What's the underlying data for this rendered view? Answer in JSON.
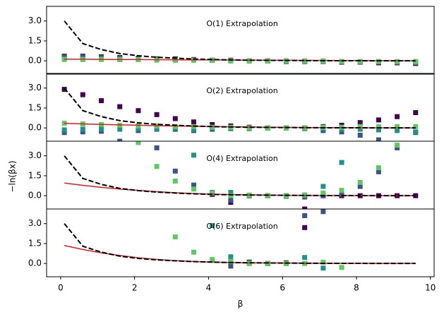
{
  "chart_data": [
    {
      "type": "scatter",
      "title": "O(1) Extrapolation",
      "x": [
        0.1,
        0.6,
        1.1,
        1.6,
        2.1,
        2.6,
        3.1,
        3.6,
        4.1,
        4.6,
        5.1,
        5.6,
        6.1,
        6.6,
        7.1,
        7.6,
        8.1,
        8.6,
        9.1,
        9.6
      ],
      "xlim": [
        -0.38,
        10.1
      ],
      "ylim": [
        -1,
        4.1
      ],
      "yticks": [
        {
          "value": 0,
          "label": "0.0"
        },
        {
          "value": 1.5,
          "label": "1.5"
        },
        {
          "value": 3,
          "label": "3.0"
        }
      ],
      "series": [
        {
          "kind": "marker",
          "color": "#440154",
          "values": [
            0.35,
            0.35,
            0.3,
            0.25,
            0.2,
            0.15,
            0.15,
            0.1,
            0.05,
            0.05,
            0.0,
            0.0,
            -0.05,
            -0.05,
            -0.05,
            -0.1,
            -0.1,
            -0.15,
            -0.15,
            -0.2
          ]
        },
        {
          "kind": "marker",
          "color": "#3b528b",
          "values": [
            0.3,
            0.3,
            0.25,
            0.2,
            0.15,
            0.15,
            0.1,
            0.05,
            0.05,
            0.0,
            0.0,
            0.0,
            -0.05,
            -0.05,
            -0.05,
            -0.05,
            -0.1,
            -0.1,
            -0.1,
            -0.15
          ]
        },
        {
          "kind": "marker",
          "color": "#21918c",
          "values": [
            0.15,
            0.15,
            0.15,
            0.1,
            0.1,
            0.1,
            0.05,
            0.05,
            0.05,
            0.0,
            0.0,
            0.0,
            0.0,
            -0.05,
            -0.05,
            -0.05,
            -0.05,
            -0.05,
            -0.1,
            -0.1
          ]
        },
        {
          "kind": "marker",
          "color": "#5ec962",
          "values": [
            0.1,
            0.1,
            0.1,
            0.1,
            0.1,
            0.05,
            0.05,
            0.05,
            0.05,
            0.0,
            0.0,
            0.0,
            0.0,
            0.0,
            0.0,
            -0.05,
            -0.05,
            -0.05,
            -0.05,
            -0.05
          ]
        },
        {
          "kind": "line",
          "color": "#e41a1c",
          "values": [
            0.12,
            0.12,
            0.11,
            0.1,
            0.1,
            0.09,
            0.08,
            0.07,
            0.07,
            0.06,
            0.05,
            0.05,
            0.04,
            0.03,
            0.03,
            0.02,
            0.02,
            0.01,
            0.01,
            0.0
          ]
        },
        {
          "kind": "line",
          "dashed": true,
          "color": "#000000",
          "values": [
            3.0,
            1.3,
            0.85,
            0.55,
            0.38,
            0.27,
            0.2,
            0.14,
            0.1,
            0.07,
            0.05,
            0.04,
            0.03,
            0.02,
            0.01,
            0.01,
            0.01,
            0.0,
            0.0,
            0.0
          ]
        }
      ]
    },
    {
      "type": "scatter",
      "title": "O(2) Extrapolation",
      "x": [
        0.1,
        0.6,
        1.1,
        1.6,
        2.1,
        2.6,
        3.1,
        3.6,
        4.1,
        4.6,
        5.1,
        5.6,
        6.1,
        6.6,
        7.1,
        7.6,
        8.1,
        8.6,
        9.1,
        9.6
      ],
      "xlim": [
        -0.38,
        10.1
      ],
      "ylim": [
        -1,
        4.1
      ],
      "yticks": [
        {
          "value": 0,
          "label": "0.0"
        },
        {
          "value": 1.5,
          "label": "1.5"
        },
        {
          "value": 3,
          "label": "3.0"
        }
      ],
      "series": [
        {
          "kind": "marker",
          "color": "#440154",
          "values": [
            2.9,
            2.5,
            2.05,
            1.6,
            1.3,
            1.0,
            0.7,
            0.45,
            0.25,
            0.15,
            0.05,
            0.0,
            0.0,
            0.0,
            0.1,
            0.2,
            0.4,
            0.6,
            0.85,
            1.15
          ]
        },
        {
          "kind": "marker",
          "color": "#3b528b",
          "values": [
            -0.35,
            -0.3,
            -0.25,
            -1.0,
            -0.2,
            -0.1,
            -0.1,
            -0.2,
            -0.1,
            -0.05,
            -0.05,
            0.0,
            0.0,
            -0.05,
            -0.2,
            -0.3,
            -0.55,
            -0.9,
            -1.3,
            -0.35
          ]
        },
        {
          "kind": "marker",
          "color": "#21918c",
          "values": [
            -0.15,
            -0.1,
            -0.1,
            -0.1,
            -0.05,
            -0.05,
            0.0,
            -0.1,
            0.0,
            0.0,
            0.0,
            0.0,
            0.0,
            0.0,
            -0.05,
            -0.1,
            -0.1,
            -0.15,
            -0.2,
            -0.3
          ]
        },
        {
          "kind": "marker",
          "color": "#5ec962",
          "values": [
            0.35,
            0.3,
            0.25,
            0.2,
            0.15,
            0.15,
            0.1,
            0.1,
            0.05,
            0.05,
            0.0,
            0.0,
            0.0,
            0.0,
            0.05,
            0.05,
            0.1,
            0.1,
            0.1,
            0.1
          ]
        },
        {
          "kind": "line",
          "color": "#e41a1c",
          "values": [
            0.35,
            0.3,
            0.26,
            0.23,
            0.2,
            0.17,
            0.15,
            0.12,
            0.1,
            0.08,
            0.07,
            0.05,
            0.04,
            0.03,
            0.02,
            0.02,
            0.01,
            0.01,
            0.0,
            0.0
          ]
        },
        {
          "kind": "line",
          "dashed": true,
          "color": "#000000",
          "values": [
            3.0,
            1.3,
            0.85,
            0.55,
            0.38,
            0.27,
            0.2,
            0.14,
            0.1,
            0.07,
            0.05,
            0.04,
            0.03,
            0.02,
            0.01,
            0.01,
            0.01,
            0.0,
            0.0,
            0.0
          ]
        }
      ]
    },
    {
      "type": "scatter",
      "title": "O(4) Extrapolation",
      "ylabel": "−ln(βx)",
      "x": [
        0.1,
        0.6,
        1.1,
        1.6,
        2.1,
        2.6,
        3.1,
        3.6,
        4.1,
        4.6,
        5.1,
        5.6,
        6.1,
        6.6,
        7.1,
        7.6,
        8.1,
        8.6,
        9.1,
        9.6
      ],
      "xlim": [
        -0.38,
        10.1
      ],
      "ylim": [
        -1,
        4.1
      ],
      "yticks": [
        {
          "value": 0,
          "label": "0.0"
        },
        {
          "value": 1.5,
          "label": "1.5"
        },
        {
          "value": 3,
          "label": "3.0"
        }
      ],
      "series": [
        {
          "kind": "marker",
          "color": "#440154",
          "values": [
            null,
            null,
            null,
            null,
            null,
            null,
            null,
            null,
            0.1,
            -0.5,
            0.0,
            0.0,
            0.0,
            -1.0,
            0.0,
            0.0,
            0.0,
            0.0,
            0.0,
            0.0
          ]
        },
        {
          "kind": "marker",
          "color": "#3b528b",
          "values": [
            null,
            null,
            null,
            null,
            null,
            3.6,
            1.85,
            0.8,
            0.2,
            -0.35,
            0.0,
            0.0,
            0.0,
            -0.1,
            0.0,
            0.1,
            0.7,
            1.8,
            3.6,
            null
          ]
        },
        {
          "kind": "marker",
          "color": "#21918c",
          "values": [
            null,
            null,
            null,
            null,
            null,
            null,
            null,
            3.05,
            0.25,
            0.25,
            0.0,
            0.0,
            -0.05,
            0.05,
            0.7,
            2.5,
            null,
            null,
            null,
            null
          ]
        },
        {
          "kind": "marker",
          "color": "#5ec962",
          "values": [
            null,
            null,
            null,
            null,
            4.0,
            2.2,
            1.1,
            0.5,
            0.2,
            0.0,
            0.05,
            0.0,
            0.0,
            0.05,
            0.2,
            0.4,
            1.0,
            2.1,
            3.8,
            null
          ]
        },
        {
          "kind": "line",
          "color": "#e41a1c",
          "values": [
            0.95,
            0.78,
            0.63,
            0.5,
            0.4,
            0.3,
            0.22,
            0.16,
            0.11,
            0.08,
            0.06,
            0.04,
            0.03,
            0.02,
            0.01,
            0.01,
            0.01,
            0.0,
            0.0,
            0.0
          ]
        },
        {
          "kind": "line",
          "dashed": true,
          "color": "#000000",
          "values": [
            3.0,
            1.3,
            0.85,
            0.55,
            0.38,
            0.27,
            0.2,
            0.14,
            0.1,
            0.07,
            0.05,
            0.04,
            0.03,
            0.02,
            0.01,
            0.01,
            0.01,
            0.0,
            0.0,
            0.0
          ]
        }
      ]
    },
    {
      "type": "scatter",
      "title": "O(6) Extrapolation",
      "xlabel": "β",
      "x": [
        0.1,
        0.6,
        1.1,
        1.6,
        2.1,
        2.6,
        3.1,
        3.6,
        4.1,
        4.6,
        5.1,
        5.6,
        6.1,
        6.6,
        7.1,
        7.6,
        8.1,
        8.6,
        9.1,
        9.6
      ],
      "xlim": [
        -0.38,
        10.1
      ],
      "ylim": [
        -1,
        4.1
      ],
      "xticks": [
        0,
        2,
        4,
        6,
        8,
        10
      ],
      "yticks": [
        {
          "value": 0,
          "label": "0.0"
        },
        {
          "value": 1.5,
          "label": "1.5"
        },
        {
          "value": 3,
          "label": "3.0"
        }
      ],
      "series": [
        {
          "kind": "marker",
          "color": "#440154",
          "values": [
            null,
            null,
            null,
            null,
            null,
            null,
            null,
            null,
            null,
            0.1,
            0.1,
            0.0,
            0.05,
            2.7,
            null,
            null,
            null,
            null,
            null,
            null
          ]
        },
        {
          "kind": "marker",
          "color": "#3b528b",
          "values": [
            null,
            null,
            null,
            null,
            null,
            null,
            null,
            null,
            null,
            -0.2,
            0.0,
            0.0,
            0.0,
            3.6,
            3.9,
            null,
            null,
            null,
            null,
            null
          ]
        },
        {
          "kind": "marker",
          "color": "#21918c",
          "values": [
            null,
            null,
            null,
            null,
            null,
            null,
            null,
            null,
            2.85,
            0.5,
            0.05,
            0.0,
            0.0,
            0.45,
            -0.35,
            null,
            null,
            null,
            null,
            null
          ]
        },
        {
          "kind": "marker",
          "color": "#5ec962",
          "values": [
            null,
            null,
            null,
            null,
            null,
            null,
            2.0,
            0.85,
            0.3,
            0.15,
            0.0,
            0.0,
            0.0,
            0.0,
            0.1,
            -0.3,
            null,
            null,
            null,
            null
          ]
        },
        {
          "kind": "line",
          "color": "#e41a1c",
          "values": [
            1.35,
            1.05,
            0.8,
            0.6,
            0.43,
            0.3,
            0.21,
            0.15,
            0.1,
            0.07,
            0.05,
            0.04,
            0.03,
            0.02,
            0.01,
            0.01,
            0.01,
            0.0,
            0.0,
            0.0
          ]
        },
        {
          "kind": "line",
          "dashed": true,
          "color": "#000000",
          "values": [
            3.0,
            1.3,
            0.85,
            0.55,
            0.38,
            0.27,
            0.2,
            0.14,
            0.1,
            0.07,
            0.05,
            0.04,
            0.03,
            0.02,
            0.01,
            0.01,
            0.01,
            0.0,
            0.0,
            0.0
          ]
        }
      ]
    }
  ]
}
